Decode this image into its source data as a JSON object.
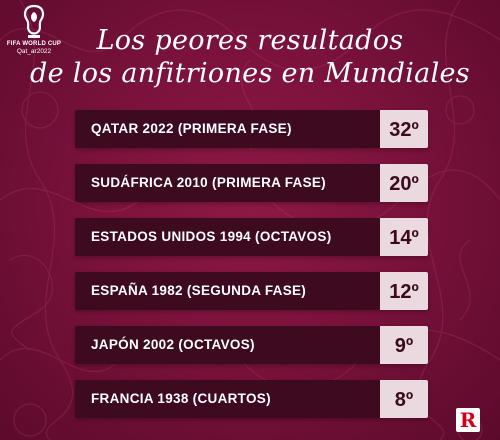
{
  "logo": {
    "line1": "FIFA WORLD CUP",
    "line2": "Qat_ar2022"
  },
  "title": {
    "line1": "Los peores resultados",
    "line2": "de los anfitriones en Mundiales"
  },
  "results": [
    {
      "label": "QATAR 2022 (PRIMERA FASE)",
      "position": "32º"
    },
    {
      "label": "SUDÁFRICA 2010 (PRIMERA FASE)",
      "position": "20º"
    },
    {
      "label": "ESTADOS UNIDOS 1994 (OCTAVOS)",
      "position": "14º"
    },
    {
      "label": "ESPAÑA 1982 (SEGUNDA FASE)",
      "position": "12º"
    },
    {
      "label": "JAPÓN 2002 (OCTAVOS)",
      "position": "9º"
    },
    {
      "label": "FRANCIA 1938 (CUARTOS)",
      "position": "8º"
    }
  ],
  "brand": {
    "letter": "R",
    "color": "#d0021b"
  },
  "colors": {
    "background": "#7a123c",
    "row": "#3d0a1f",
    "position_box": "#ead9df"
  }
}
